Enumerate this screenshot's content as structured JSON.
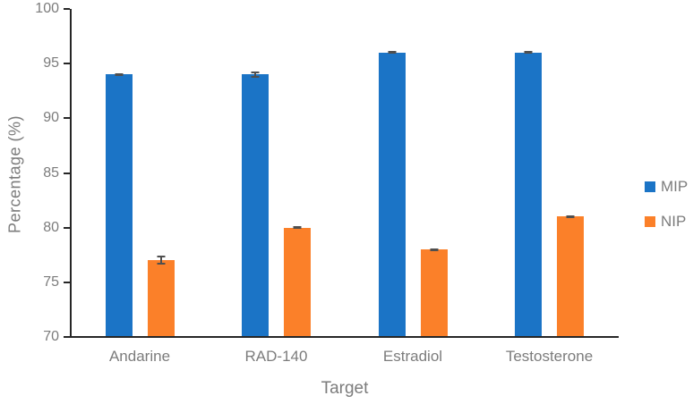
{
  "chart_data": {
    "type": "bar",
    "title": "",
    "xlabel": "Target",
    "ylabel": "Percentage (%)",
    "categories": [
      "Andarine",
      "RAD-140",
      "Estradiol",
      "Testosterone"
    ],
    "series": [
      {
        "name": "MIP",
        "color": "#1B74C6",
        "values": [
          94,
          94,
          96,
          96
        ],
        "errors": [
          0.15,
          0.3,
          0.12,
          0.12
        ]
      },
      {
        "name": "NIP",
        "color": "#FB8029",
        "values": [
          77,
          80,
          78,
          81
        ],
        "errors": [
          0.4,
          0.15,
          0.12,
          0.15
        ]
      }
    ],
    "ylim": [
      70,
      100
    ],
    "yticks": [
      100,
      95,
      90,
      85,
      80,
      75,
      70
    ],
    "grid": false,
    "error_bars": true,
    "legend_position": "right",
    "legend_entries": [
      "MIP",
      "NIP"
    ]
  },
  "colors": {
    "axis_line": "#262626",
    "label_text": "#7c7c7c",
    "error_bar": "#4f4f4f",
    "background": "#ffffff"
  }
}
